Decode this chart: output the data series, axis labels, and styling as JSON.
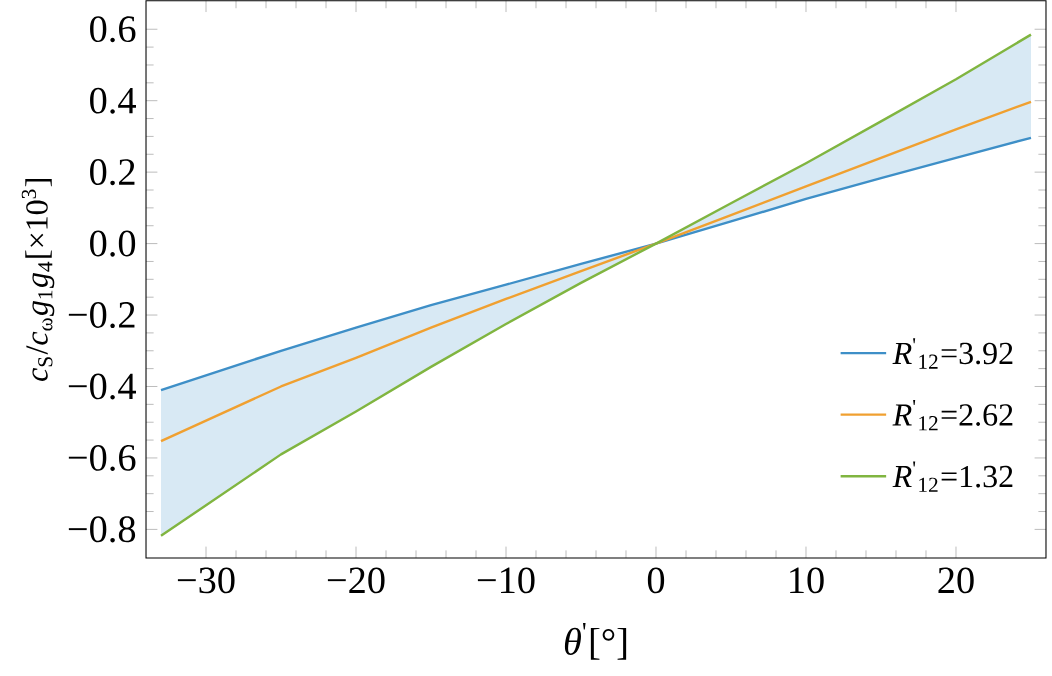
{
  "chart_data": {
    "type": "line",
    "xlabel": "*θ*$^{'}$[°]",
    "ylabel": "*c*$_{S}$/*c*$_{ω}$*g*$_{1}$*g*$_{4}$[×10$^{3}$]",
    "x": [
      -33,
      -25,
      -20,
      -15,
      -10,
      -5,
      0,
      5,
      10,
      15,
      20,
      25
    ],
    "series": [
      {
        "name": "*R*$^{'}$$_{12}$=3.92",
        "color": "#3e8fc7",
        "values": [
          -0.41,
          -0.3,
          -0.235,
          -0.172,
          -0.115,
          -0.057,
          0,
          0.062,
          0.125,
          0.183,
          0.24,
          0.296
        ],
        "lower": [
          -0.818,
          -0.59,
          -0.47,
          -0.345,
          -0.225,
          -0.11,
          0,
          0.113,
          0.225,
          0.342,
          0.46,
          0.585
        ],
        "upper": [
          -0.41,
          -0.3,
          -0.235,
          -0.172,
          -0.115,
          -0.057,
          0,
          0.062,
          0.125,
          0.183,
          0.24,
          0.296
        ]
      },
      {
        "name": "*R*$^{'}$$_{12}$=2.62",
        "color": "#f0a030",
        "values": [
          -0.553,
          -0.4,
          -0.32,
          -0.235,
          -0.155,
          -0.077,
          0,
          0.08,
          0.16,
          0.24,
          0.32,
          0.397
        ]
      },
      {
        "name": "*R*$^{'}$$_{12}$=1.32",
        "color": "#80b540",
        "values": [
          -0.818,
          -0.59,
          -0.47,
          -0.345,
          -0.225,
          -0.11,
          0,
          0.113,
          0.225,
          0.342,
          0.46,
          0.585
        ]
      }
    ],
    "xlim": [
      -34,
      26
    ],
    "ylim": [
      -0.88,
      0.68
    ],
    "xticks": [
      {
        "value": -30,
        "label": "−30"
      },
      {
        "value": -20,
        "label": "−20"
      },
      {
        "value": -10,
        "label": "−10"
      },
      0,
      10,
      20
    ],
    "yticks": [
      {
        "value": -0.8,
        "label": "−0.8"
      },
      {
        "value": -0.6,
        "label": "−0.6"
      },
      {
        "value": -0.4,
        "label": "−0.4"
      },
      {
        "value": -0.2,
        "label": "−0.2"
      },
      {
        "value": 0,
        "label": "0.0"
      },
      {
        "value": 0.2,
        "label": "0.2"
      },
      {
        "value": 0.4,
        "label": "0.4"
      },
      {
        "value": 0.6,
        "label": "0.6"
      }
    ],
    "legend": "bottom right",
    "grid": false,
    "marker": "none",
    "line_style": "solid"
  }
}
